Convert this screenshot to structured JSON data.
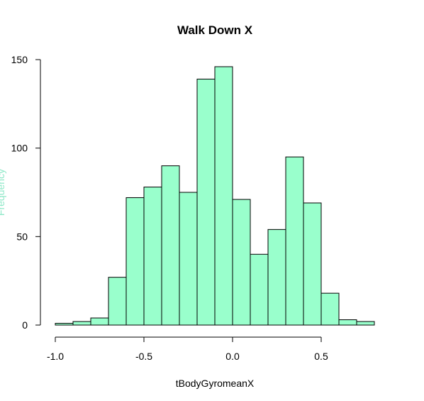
{
  "chart_data": {
    "type": "histogram",
    "title": "Walk Down X",
    "xlabel": "tBodyGyromeanX",
    "ylabel": "Frequency",
    "bins": [
      -1.0,
      -0.9,
      -0.8,
      -0.7,
      -0.6,
      -0.5,
      -0.4,
      -0.3,
      -0.2,
      -0.1,
      0.0,
      0.1,
      0.2,
      0.3,
      0.4,
      0.5,
      0.6,
      0.7,
      0.8
    ],
    "values": [
      1,
      2,
      4,
      27,
      72,
      78,
      90,
      75,
      139,
      146,
      71,
      40,
      54,
      95,
      69,
      18,
      3,
      2
    ],
    "color": "#99ffcc",
    "xlim": [
      -1.0,
      0.8
    ],
    "xticks": [
      {
        "value": -1.0,
        "label": "-1.0"
      },
      {
        "value": -0.5,
        "label": "-0.5"
      },
      {
        "value": 0.0,
        "label": "0.0"
      },
      {
        "value": 0.5,
        "label": "0.5"
      }
    ],
    "ylim": [
      0,
      150
    ],
    "yticks": [
      0,
      50,
      100,
      150
    ]
  }
}
